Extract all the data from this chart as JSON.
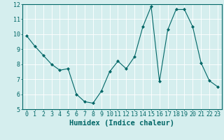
{
  "x": [
    0,
    1,
    2,
    3,
    4,
    5,
    6,
    7,
    8,
    9,
    10,
    11,
    12,
    13,
    14,
    15,
    16,
    17,
    18,
    19,
    20,
    21,
    22,
    23
  ],
  "y": [
    9.9,
    9.2,
    8.6,
    8.0,
    7.6,
    7.7,
    6.0,
    5.5,
    5.4,
    6.2,
    7.5,
    8.2,
    7.7,
    8.5,
    10.5,
    11.85,
    6.85,
    10.3,
    11.65,
    11.65,
    10.5,
    8.1,
    6.9,
    6.5
  ],
  "line_color": "#006666",
  "marker": "D",
  "marker_size": 2.0,
  "bg_color": "#d5eeee",
  "grid_color": "#b0d8d8",
  "xlabel": "Humidex (Indice chaleur)",
  "ylim": [
    5,
    12
  ],
  "xlim_min": -0.5,
  "xlim_max": 23.5,
  "yticks": [
    5,
    6,
    7,
    8,
    9,
    10,
    11,
    12
  ],
  "xticks": [
    0,
    1,
    2,
    3,
    4,
    5,
    6,
    7,
    8,
    9,
    10,
    11,
    12,
    13,
    14,
    15,
    16,
    17,
    18,
    19,
    20,
    21,
    22,
    23
  ],
  "tick_label_fontsize": 6.0,
  "xlabel_fontsize": 7.5,
  "tick_color": "#006666",
  "label_color": "#006666",
  "linewidth": 0.8
}
